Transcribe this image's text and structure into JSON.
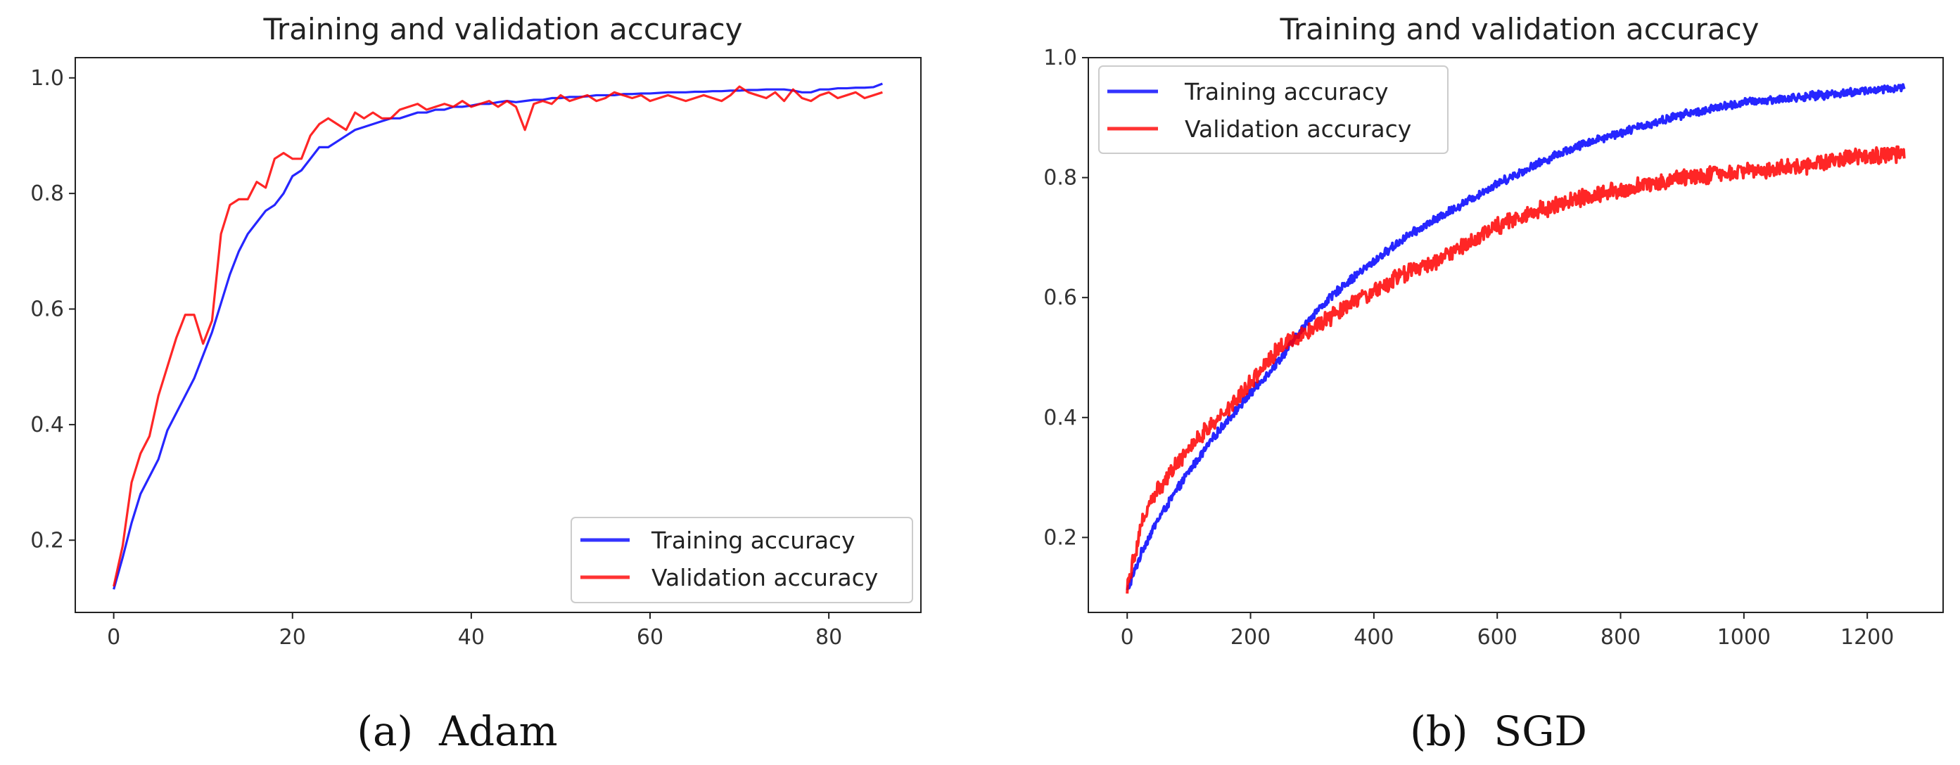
{
  "chart_data": [
    {
      "type": "line",
      "id": "adam",
      "title": "Training and validation accuracy",
      "caption": "(a)  Adam",
      "xlabel": "",
      "ylabel": "",
      "xlim": [
        -4.3,
        90.3
      ],
      "ylim": [
        0.075,
        1.035
      ],
      "xticks": [
        0,
        20,
        40,
        60,
        80
      ],
      "yticks": [
        0.2,
        0.4,
        0.6,
        0.8,
        1.0
      ],
      "xtick_labels": [
        "0",
        "20",
        "40",
        "60",
        "80"
      ],
      "ytick_labels": [
        "0.2",
        "0.4",
        "0.6",
        "0.8",
        "1.0"
      ],
      "legend": "lower right",
      "grid": false,
      "series": [
        {
          "name": "Training accuracy",
          "color": "#0000ff",
          "x": [
            0,
            1,
            2,
            3,
            4,
            5,
            6,
            7,
            8,
            9,
            10,
            11,
            12,
            13,
            14,
            15,
            16,
            17,
            18,
            19,
            20,
            21,
            22,
            23,
            24,
            25,
            26,
            27,
            28,
            29,
            30,
            31,
            32,
            33,
            34,
            35,
            36,
            37,
            38,
            39,
            40,
            41,
            42,
            43,
            44,
            45,
            46,
            47,
            48,
            49,
            50,
            51,
            52,
            53,
            54,
            55,
            56,
            57,
            58,
            59,
            60,
            61,
            62,
            63,
            64,
            65,
            66,
            67,
            68,
            69,
            70,
            71,
            72,
            73,
            74,
            75,
            76,
            77,
            78,
            79,
            80,
            81,
            82,
            83,
            84,
            85,
            86
          ],
          "y": [
            0.115,
            0.17,
            0.23,
            0.28,
            0.31,
            0.34,
            0.39,
            0.42,
            0.45,
            0.48,
            0.52,
            0.56,
            0.61,
            0.66,
            0.7,
            0.73,
            0.75,
            0.77,
            0.78,
            0.8,
            0.83,
            0.84,
            0.86,
            0.88,
            0.88,
            0.89,
            0.9,
            0.91,
            0.915,
            0.92,
            0.925,
            0.93,
            0.93,
            0.935,
            0.94,
            0.94,
            0.945,
            0.945,
            0.95,
            0.95,
            0.952,
            0.955,
            0.955,
            0.958,
            0.96,
            0.958,
            0.96,
            0.962,
            0.962,
            0.965,
            0.965,
            0.967,
            0.967,
            0.968,
            0.97,
            0.97,
            0.97,
            0.972,
            0.972,
            0.973,
            0.973,
            0.974,
            0.975,
            0.975,
            0.975,
            0.976,
            0.976,
            0.977,
            0.977,
            0.978,
            0.978,
            0.979,
            0.979,
            0.98,
            0.98,
            0.98,
            0.978,
            0.975,
            0.975,
            0.98,
            0.98,
            0.982,
            0.982,
            0.983,
            0.983,
            0.984,
            0.99
          ]
        },
        {
          "name": "Validation accuracy",
          "color": "#ff0000",
          "x": [
            0,
            1,
            2,
            3,
            4,
            5,
            6,
            7,
            8,
            9,
            10,
            11,
            12,
            13,
            14,
            15,
            16,
            17,
            18,
            19,
            20,
            21,
            22,
            23,
            24,
            25,
            26,
            27,
            28,
            29,
            30,
            31,
            32,
            33,
            34,
            35,
            36,
            37,
            38,
            39,
            40,
            41,
            42,
            43,
            44,
            45,
            46,
            47,
            48,
            49,
            50,
            51,
            52,
            53,
            54,
            55,
            56,
            57,
            58,
            59,
            60,
            61,
            62,
            63,
            64,
            65,
            66,
            67,
            68,
            69,
            70,
            71,
            72,
            73,
            74,
            75,
            76,
            77,
            78,
            79,
            80,
            81,
            82,
            83,
            84,
            85,
            86
          ],
          "y": [
            0.12,
            0.19,
            0.3,
            0.35,
            0.38,
            0.45,
            0.5,
            0.55,
            0.59,
            0.59,
            0.54,
            0.58,
            0.73,
            0.78,
            0.79,
            0.79,
            0.82,
            0.81,
            0.86,
            0.87,
            0.86,
            0.86,
            0.9,
            0.92,
            0.93,
            0.92,
            0.91,
            0.94,
            0.93,
            0.94,
            0.93,
            0.93,
            0.945,
            0.95,
            0.955,
            0.945,
            0.95,
            0.955,
            0.95,
            0.96,
            0.95,
            0.955,
            0.96,
            0.95,
            0.96,
            0.95,
            0.91,
            0.955,
            0.96,
            0.955,
            0.97,
            0.96,
            0.965,
            0.97,
            0.96,
            0.965,
            0.975,
            0.97,
            0.965,
            0.97,
            0.96,
            0.965,
            0.97,
            0.965,
            0.96,
            0.965,
            0.97,
            0.965,
            0.96,
            0.97,
            0.985,
            0.975,
            0.97,
            0.965,
            0.975,
            0.96,
            0.98,
            0.965,
            0.96,
            0.97,
            0.975,
            0.965,
            0.97,
            0.975,
            0.965,
            0.97,
            0.975
          ]
        }
      ]
    },
    {
      "type": "line",
      "id": "sgd",
      "title": "Training and validation accuracy",
      "caption": "(b)  SGD",
      "xlabel": "",
      "ylabel": "",
      "epochs": 1260,
      "xlim": [
        -63,
        1323
      ],
      "ylim": [
        0.075,
        1.0
      ],
      "xticks": [
        0,
        200,
        400,
        600,
        800,
        1000,
        1200
      ],
      "yticks": [
        0.2,
        0.4,
        0.6,
        0.8,
        1.0
      ],
      "xtick_labels": [
        "0",
        "200",
        "400",
        "600",
        "800",
        "1000",
        "1200"
      ],
      "ytick_labels": [
        "0.2",
        "0.4",
        "0.6",
        "0.8",
        "1.0"
      ],
      "legend": "upper left",
      "grid": false,
      "series": [
        {
          "name": "Training accuracy",
          "color": "#0000ff",
          "x": [
            0,
            25,
            50,
            100,
            150,
            200,
            250,
            300,
            350,
            400,
            450,
            500,
            550,
            600,
            650,
            700,
            750,
            800,
            850,
            900,
            950,
            1000,
            1050,
            1100,
            1150,
            1200,
            1260
          ],
          "y": [
            0.11,
            0.18,
            0.23,
            0.31,
            0.38,
            0.44,
            0.5,
            0.57,
            0.62,
            0.66,
            0.7,
            0.73,
            0.76,
            0.79,
            0.815,
            0.84,
            0.86,
            0.875,
            0.89,
            0.905,
            0.915,
            0.925,
            0.93,
            0.935,
            0.94,
            0.945,
            0.95
          ]
        },
        {
          "name": "Validation accuracy",
          "color": "#ff0000",
          "x": [
            0,
            25,
            50,
            100,
            150,
            200,
            250,
            300,
            350,
            400,
            450,
            500,
            550,
            600,
            650,
            700,
            750,
            800,
            850,
            900,
            950,
            1000,
            1050,
            1100,
            1150,
            1200,
            1260
          ],
          "y": [
            0.12,
            0.23,
            0.28,
            0.35,
            0.4,
            0.46,
            0.52,
            0.55,
            0.58,
            0.61,
            0.64,
            0.66,
            0.69,
            0.72,
            0.74,
            0.755,
            0.77,
            0.78,
            0.79,
            0.8,
            0.805,
            0.81,
            0.815,
            0.82,
            0.83,
            0.835,
            0.84
          ]
        }
      ]
    }
  ]
}
